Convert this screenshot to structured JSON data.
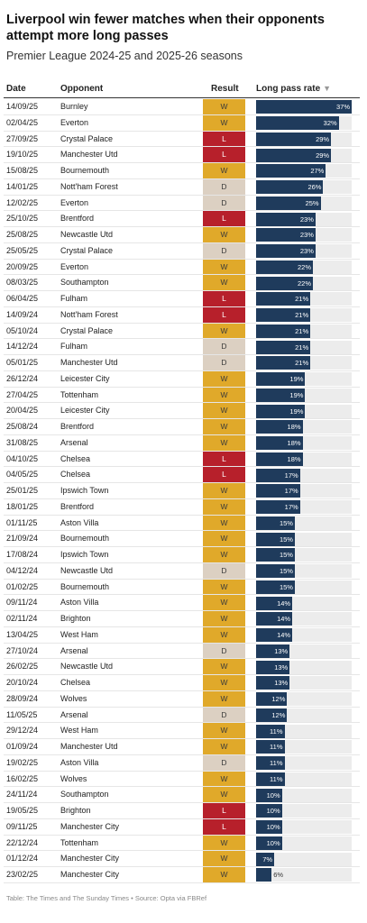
{
  "title": "Liverpool win fewer matches when their opponents attempt more long passes",
  "subtitle": "Premier League 2024-25 and 2025-26 seasons",
  "headers": {
    "date": "Date",
    "opponent": "Opponent",
    "result": "Result",
    "rate": "Long pass rate",
    "sort_icon": "▼"
  },
  "footer": "Table: The Times and The Sunday Times • Source: Opta via FBRef",
  "colors": {
    "W": "#e0a92a",
    "L": "#b7202b",
    "D": "#dcd0c2",
    "bar": "#1f3b5c",
    "track": "#ececec"
  },
  "chart_data": {
    "type": "table",
    "columns": [
      "Date",
      "Opponent",
      "Result",
      "Long pass rate"
    ],
    "rows": [
      {
        "date": "14/09/25",
        "opponent": "Burnley",
        "result": "W",
        "rate": 37
      },
      {
        "date": "02/04/25",
        "opponent": "Everton",
        "result": "W",
        "rate": 32
      },
      {
        "date": "27/09/25",
        "opponent": "Crystal Palace",
        "result": "L",
        "rate": 29
      },
      {
        "date": "19/10/25",
        "opponent": "Manchester Utd",
        "result": "L",
        "rate": 29
      },
      {
        "date": "15/08/25",
        "opponent": "Bournemouth",
        "result": "W",
        "rate": 27
      },
      {
        "date": "14/01/25",
        "opponent": "Nott'ham Forest",
        "result": "D",
        "rate": 26
      },
      {
        "date": "12/02/25",
        "opponent": "Everton",
        "result": "D",
        "rate": 25
      },
      {
        "date": "25/10/25",
        "opponent": "Brentford",
        "result": "L",
        "rate": 23
      },
      {
        "date": "25/08/25",
        "opponent": "Newcastle Utd",
        "result": "W",
        "rate": 23
      },
      {
        "date": "25/05/25",
        "opponent": "Crystal Palace",
        "result": "D",
        "rate": 23
      },
      {
        "date": "20/09/25",
        "opponent": "Everton",
        "result": "W",
        "rate": 22
      },
      {
        "date": "08/03/25",
        "opponent": "Southampton",
        "result": "W",
        "rate": 22
      },
      {
        "date": "06/04/25",
        "opponent": "Fulham",
        "result": "L",
        "rate": 21
      },
      {
        "date": "14/09/24",
        "opponent": "Nott'ham Forest",
        "result": "L",
        "rate": 21
      },
      {
        "date": "05/10/24",
        "opponent": "Crystal Palace",
        "result": "W",
        "rate": 21
      },
      {
        "date": "14/12/24",
        "opponent": "Fulham",
        "result": "D",
        "rate": 21
      },
      {
        "date": "05/01/25",
        "opponent": "Manchester Utd",
        "result": "D",
        "rate": 21
      },
      {
        "date": "26/12/24",
        "opponent": "Leicester City",
        "result": "W",
        "rate": 19
      },
      {
        "date": "27/04/25",
        "opponent": "Tottenham",
        "result": "W",
        "rate": 19
      },
      {
        "date": "20/04/25",
        "opponent": "Leicester City",
        "result": "W",
        "rate": 19
      },
      {
        "date": "25/08/24",
        "opponent": "Brentford",
        "result": "W",
        "rate": 18
      },
      {
        "date": "31/08/25",
        "opponent": "Arsenal",
        "result": "W",
        "rate": 18
      },
      {
        "date": "04/10/25",
        "opponent": "Chelsea",
        "result": "L",
        "rate": 18
      },
      {
        "date": "04/05/25",
        "opponent": "Chelsea",
        "result": "L",
        "rate": 17
      },
      {
        "date": "25/01/25",
        "opponent": "Ipswich Town",
        "result": "W",
        "rate": 17
      },
      {
        "date": "18/01/25",
        "opponent": "Brentford",
        "result": "W",
        "rate": 17
      },
      {
        "date": "01/11/25",
        "opponent": "Aston Villa",
        "result": "W",
        "rate": 15
      },
      {
        "date": "21/09/24",
        "opponent": "Bournemouth",
        "result": "W",
        "rate": 15
      },
      {
        "date": "17/08/24",
        "opponent": "Ipswich Town",
        "result": "W",
        "rate": 15
      },
      {
        "date": "04/12/24",
        "opponent": "Newcastle Utd",
        "result": "D",
        "rate": 15
      },
      {
        "date": "01/02/25",
        "opponent": "Bournemouth",
        "result": "W",
        "rate": 15
      },
      {
        "date": "09/11/24",
        "opponent": "Aston Villa",
        "result": "W",
        "rate": 14
      },
      {
        "date": "02/11/24",
        "opponent": "Brighton",
        "result": "W",
        "rate": 14
      },
      {
        "date": "13/04/25",
        "opponent": "West Ham",
        "result": "W",
        "rate": 14
      },
      {
        "date": "27/10/24",
        "opponent": "Arsenal",
        "result": "D",
        "rate": 13
      },
      {
        "date": "26/02/25",
        "opponent": "Newcastle Utd",
        "result": "W",
        "rate": 13
      },
      {
        "date": "20/10/24",
        "opponent": "Chelsea",
        "result": "W",
        "rate": 13
      },
      {
        "date": "28/09/24",
        "opponent": "Wolves",
        "result": "W",
        "rate": 12
      },
      {
        "date": "11/05/25",
        "opponent": "Arsenal",
        "result": "D",
        "rate": 12
      },
      {
        "date": "29/12/24",
        "opponent": "West Ham",
        "result": "W",
        "rate": 11
      },
      {
        "date": "01/09/24",
        "opponent": "Manchester Utd",
        "result": "W",
        "rate": 11
      },
      {
        "date": "19/02/25",
        "opponent": "Aston Villa",
        "result": "D",
        "rate": 11
      },
      {
        "date": "16/02/25",
        "opponent": "Wolves",
        "result": "W",
        "rate": 11
      },
      {
        "date": "24/11/24",
        "opponent": "Southampton",
        "result": "W",
        "rate": 10
      },
      {
        "date": "19/05/25",
        "opponent": "Brighton",
        "result": "L",
        "rate": 10
      },
      {
        "date": "09/11/25",
        "opponent": "Manchester City",
        "result": "L",
        "rate": 10
      },
      {
        "date": "22/12/24",
        "opponent": "Tottenham",
        "result": "W",
        "rate": 10
      },
      {
        "date": "01/12/24",
        "opponent": "Manchester City",
        "result": "W",
        "rate": 7
      },
      {
        "date": "23/02/25",
        "opponent": "Manchester City",
        "result": "W",
        "rate": 6
      }
    ],
    "rate_suffix": "%",
    "xlim": [
      0,
      37
    ]
  }
}
